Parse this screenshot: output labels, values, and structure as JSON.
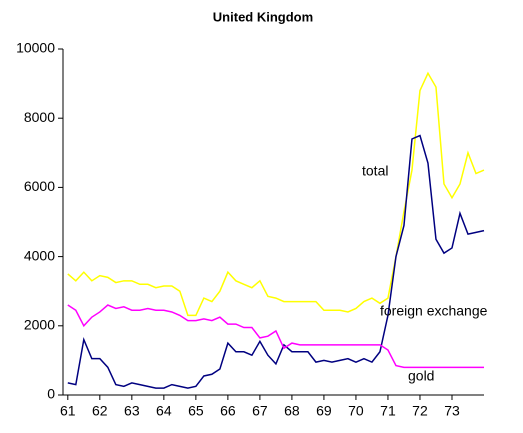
{
  "chart_data": {
    "type": "line",
    "title": "United Kingdom",
    "x": [
      61,
      61.25,
      61.5,
      61.75,
      62,
      62.25,
      62.5,
      62.75,
      63,
      63.25,
      63.5,
      63.75,
      64,
      64.25,
      64.5,
      64.75,
      65,
      65.25,
      65.5,
      65.75,
      66,
      66.25,
      66.5,
      66.75,
      67,
      67.25,
      67.5,
      67.75,
      68,
      68.25,
      68.5,
      68.75,
      69,
      69.25,
      69.5,
      69.75,
      70,
      70.25,
      70.5,
      70.75,
      71,
      71.25,
      71.5,
      71.75,
      72,
      72.25,
      72.5,
      72.75,
      73,
      73.25,
      73.5,
      73.75,
      74
    ],
    "series": [
      {
        "name": "total",
        "color": "#ffff00",
        "values": [
          3500,
          3300,
          3550,
          3300,
          3450,
          3400,
          3250,
          3300,
          3300,
          3200,
          3200,
          3100,
          3150,
          3150,
          3000,
          2300,
          2300,
          2800,
          2700,
          3000,
          3550,
          3300,
          3200,
          3100,
          3300,
          2850,
          2800,
          2700,
          2700,
          2700,
          2700,
          2700,
          2450,
          2450,
          2450,
          2400,
          2500,
          2700,
          2800,
          2650,
          2800,
          4000,
          5300,
          6500,
          8800,
          9300,
          8900,
          6100,
          5700,
          6100,
          7000,
          6400,
          6500
        ]
      },
      {
        "name": "foreign exchange",
        "color": "#000080",
        "values": [
          350,
          300,
          1600,
          1050,
          1050,
          800,
          300,
          250,
          350,
          300,
          250,
          200,
          200,
          300,
          250,
          200,
          250,
          550,
          600,
          750,
          1500,
          1250,
          1250,
          1150,
          1550,
          1150,
          900,
          1450,
          1250,
          1250,
          1250,
          950,
          1000,
          950,
          1000,
          1050,
          950,
          1050,
          950,
          1250,
          2300,
          4000,
          4900,
          7400,
          7500,
          6700,
          4500,
          4100,
          4250,
          5250,
          4650,
          4700,
          4750
        ]
      },
      {
        "name": "gold",
        "color": "#ff00ff",
        "values": [
          2600,
          2450,
          2000,
          2250,
          2400,
          2600,
          2500,
          2550,
          2450,
          2450,
          2500,
          2450,
          2450,
          2400,
          2300,
          2150,
          2150,
          2200,
          2150,
          2250,
          2050,
          2050,
          1950,
          1950,
          1650,
          1700,
          1850,
          1350,
          1500,
          1450,
          1450,
          1450,
          1450,
          1450,
          1450,
          1450,
          1450,
          1450,
          1450,
          1450,
          1300,
          850,
          800,
          800,
          800,
          800,
          800,
          800,
          800,
          800,
          800,
          800,
          800
        ]
      }
    ],
    "xlim": [
      60.85,
      74
    ],
    "xticks": [
      61,
      62,
      63,
      64,
      65,
      66,
      67,
      68,
      69,
      70,
      71,
      72,
      73
    ],
    "ylim": [
      0,
      10000
    ],
    "yticks": [
      0,
      2000,
      4000,
      6000,
      8000,
      10000
    ]
  }
}
